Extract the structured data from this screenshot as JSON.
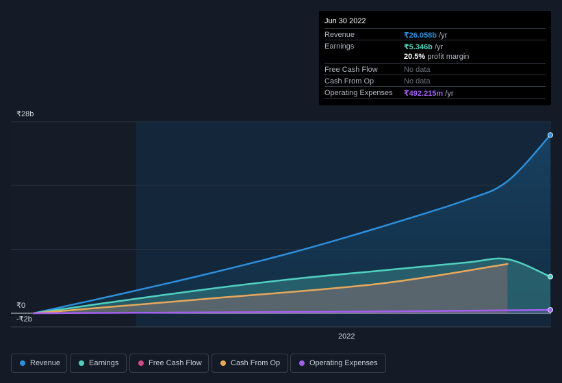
{
  "tooltip": {
    "date": "Jun 30 2022",
    "rows": [
      {
        "label": "Revenue",
        "value": "₹26.058b",
        "unit": " /yr",
        "color": "#2d8fdd"
      },
      {
        "label": "Earnings",
        "value": "₹5.346b",
        "unit": " /yr",
        "color": "#50d1c0"
      },
      {
        "label": "Free Cash Flow",
        "value": "No data"
      },
      {
        "label": "Cash From Op",
        "value": "No data"
      },
      {
        "label": "Operating Expenses",
        "value": "₹492.215m",
        "unit": " /yr",
        "color": "#a55ff0"
      }
    ],
    "margin_value": "20.5%",
    "margin_label": " profit margin"
  },
  "axis": {
    "y_top": "₹28b",
    "y_zero": "₹0",
    "y_neg": "-₹2b",
    "x_tick": "2022"
  },
  "legend": [
    {
      "label": "Revenue",
      "color": "#2d8fdd"
    },
    {
      "label": "Earnings",
      "color": "#50d1c0"
    },
    {
      "label": "Free Cash Flow",
      "color": "#d04a86"
    },
    {
      "label": "Cash From Op",
      "color": "#e8a85c"
    },
    {
      "label": "Operating Expenses",
      "color": "#a55ff0"
    }
  ],
  "chart_data": {
    "type": "area",
    "ylim": [
      -2,
      28
    ],
    "y_unit": "₹b",
    "xlim": [
      "2019-06-30",
      "2022-06-30"
    ],
    "series": [
      {
        "name": "Revenue",
        "color": "#2d8fdd",
        "points": [
          [
            "2019-06-30",
            0
          ],
          [
            "2019-12-31",
            2.8
          ],
          [
            "2020-06-30",
            5.7
          ],
          [
            "2020-12-31",
            8.9
          ],
          [
            "2021-06-30",
            12.5
          ],
          [
            "2021-12-31",
            16.5
          ],
          [
            "2022-03-31",
            19.3
          ],
          [
            "2022-06-30",
            26.058
          ]
        ]
      },
      {
        "name": "Earnings",
        "color": "#50d1c0",
        "points": [
          [
            "2019-06-30",
            0
          ],
          [
            "2019-12-31",
            1.8
          ],
          [
            "2020-06-30",
            3.5
          ],
          [
            "2020-12-31",
            5.0
          ],
          [
            "2021-06-30",
            6.2
          ],
          [
            "2021-12-31",
            7.4
          ],
          [
            "2022-03-31",
            7.9
          ],
          [
            "2022-06-30",
            5.346
          ]
        ]
      },
      {
        "name": "Cash From Op",
        "color": "#e8a85c",
        "points": [
          [
            "2019-06-30",
            0
          ],
          [
            "2020-06-30",
            2.1
          ],
          [
            "2021-06-30",
            4.3
          ],
          [
            "2022-03-31",
            7.2
          ]
        ]
      },
      {
        "name": "Operating Expenses",
        "color": "#a55ff0",
        "points": [
          [
            "2019-06-30",
            0
          ],
          [
            "2020-06-30",
            0.12
          ],
          [
            "2021-06-30",
            0.25
          ],
          [
            "2022-06-30",
            0.492
          ]
        ]
      }
    ]
  }
}
